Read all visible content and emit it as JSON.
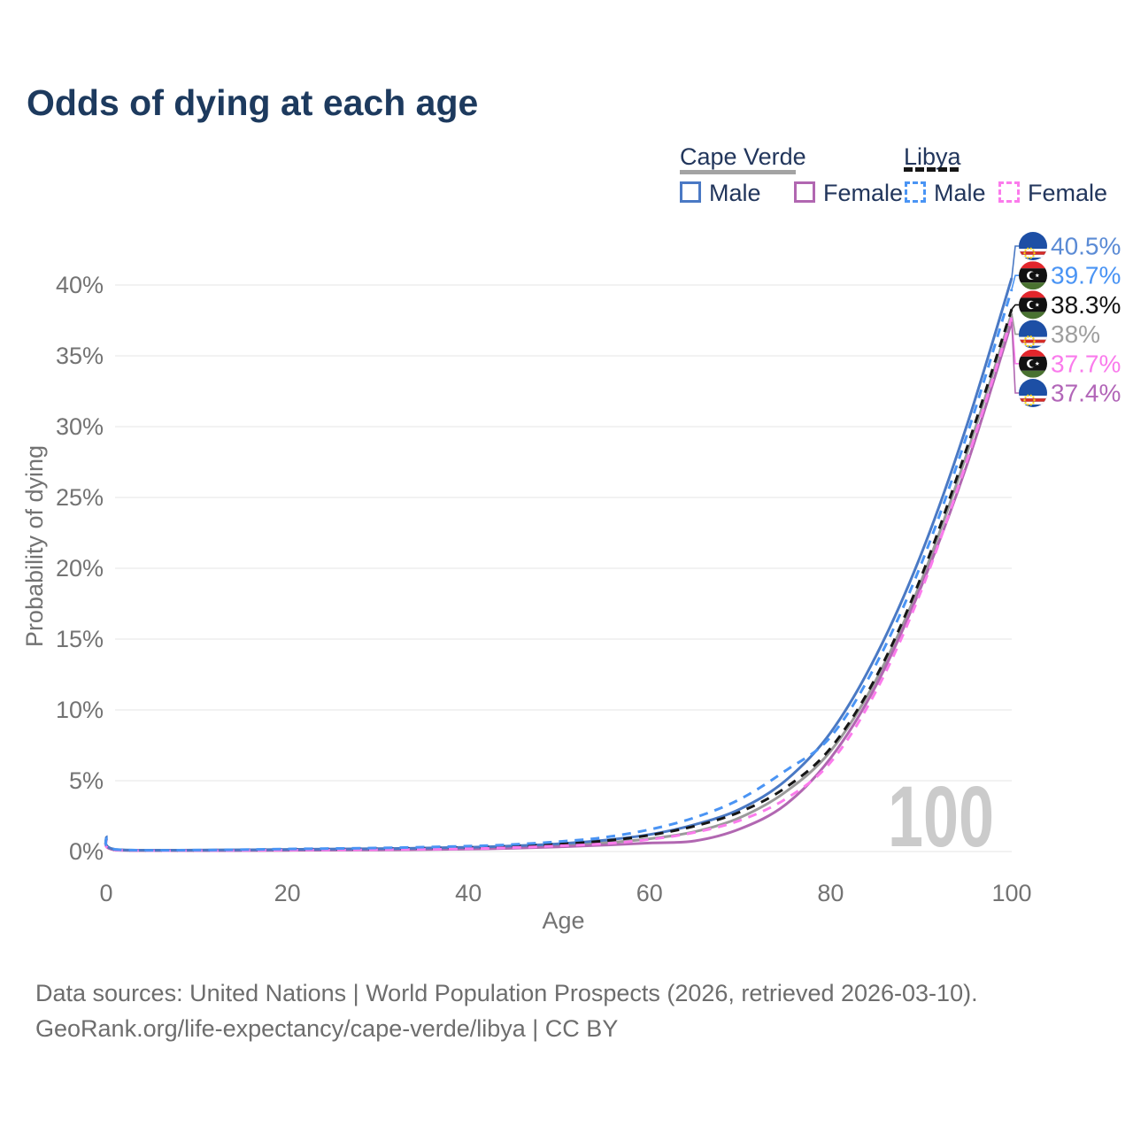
{
  "page": {
    "title": "Odds of dying at each age"
  },
  "legend": {
    "groups": [
      {
        "label": "Cape Verde",
        "line_style": "solid",
        "underline_color": "#a3a3a3",
        "items": [
          {
            "label": "Male",
            "color": "#4a79c4"
          },
          {
            "label": "Female",
            "color": "#b167b1"
          }
        ]
      },
      {
        "label": "Libya",
        "line_style": "dashed",
        "underline_color": "#161616",
        "items": [
          {
            "label": "Male",
            "color": "#4a94f4"
          },
          {
            "label": "Female",
            "color": "#fb7bec"
          }
        ]
      }
    ]
  },
  "watermark": "100",
  "footer": {
    "line1": "Data sources: United Nations | World Population Prospects (2026, retrieved 2026-03-10).",
    "line2": "GeoRank.org/life-expectancy/cape-verde/libya | CC BY"
  },
  "chart_data": {
    "type": "line",
    "title": "Odds of dying at each age",
    "xlabel": "Age",
    "ylabel": "Probability of dying",
    "xlim": [
      0,
      100
    ],
    "ylim": [
      0,
      42
    ],
    "x_ticks": [
      0,
      20,
      40,
      60,
      80,
      100
    ],
    "y_ticks": [
      0,
      5,
      10,
      15,
      20,
      25,
      30,
      35,
      40
    ],
    "y_tick_suffix": "%",
    "grid": "horizontal",
    "legend_position": "top-right",
    "x": [
      0,
      1,
      10,
      20,
      30,
      40,
      45,
      50,
      55,
      60,
      65,
      70,
      75,
      80,
      85,
      90,
      95,
      100
    ],
    "series": [
      {
        "id": "cv-male",
        "name": "Cape Verde Male",
        "dash": false,
        "color": "#4a79c4",
        "label_color": "#5b8bd5",
        "end_label": "40.5%",
        "end_value": 40.5,
        "flag": "cape-verde",
        "values": [
          1.1,
          0.15,
          0.1,
          0.15,
          0.2,
          0.3,
          0.4,
          0.55,
          0.8,
          1.2,
          1.9,
          3.0,
          5.0,
          8.4,
          13.8,
          21.0,
          30.0,
          40.5
        ]
      },
      {
        "id": "libya-male",
        "name": "Libya Male",
        "dash": true,
        "color": "#4a94f4",
        "label_color": "#4a94f4",
        "end_label": "39.7%",
        "end_value": 39.7,
        "flag": "libya",
        "values": [
          1.0,
          0.15,
          0.1,
          0.18,
          0.25,
          0.38,
          0.5,
          0.7,
          1.0,
          1.55,
          2.4,
          3.7,
          5.7,
          8.1,
          13.2,
          20.3,
          29.3,
          39.7
        ]
      },
      {
        "id": "libya-total",
        "name": "Libya",
        "dash": true,
        "color": "#161616",
        "label_color": "#161616",
        "end_label": "38.3%",
        "end_value": 38.3,
        "flag": "libya",
        "values": [
          0.9,
          0.12,
          0.08,
          0.13,
          0.18,
          0.28,
          0.38,
          0.52,
          0.75,
          1.15,
          1.8,
          2.8,
          4.5,
          7.3,
          12.3,
          19.4,
          28.4,
          38.3
        ]
      },
      {
        "id": "cv-total",
        "name": "Cape Verde",
        "dash": false,
        "color": "#9a9a9a",
        "label_color": "#9e9e9e",
        "end_label": "38%",
        "end_value": 38.0,
        "flag": "cape-verde",
        "values": [
          1.0,
          0.12,
          0.08,
          0.11,
          0.15,
          0.24,
          0.32,
          0.45,
          0.62,
          0.9,
          1.4,
          2.4,
          4.2,
          7.1,
          12.1,
          19.1,
          28.0,
          38.0
        ]
      },
      {
        "id": "libya-female",
        "name": "Libya Female",
        "dash": true,
        "color": "#fb7bec",
        "label_color": "#fa7bec",
        "end_label": "37.7%",
        "end_value": 37.7,
        "flag": "libya",
        "values": [
          0.85,
          0.1,
          0.07,
          0.1,
          0.13,
          0.2,
          0.28,
          0.4,
          0.55,
          0.85,
          1.35,
          2.2,
          3.7,
          6.3,
          11.3,
          18.4,
          27.5,
          37.7
        ]
      },
      {
        "id": "cv-female",
        "name": "Cape Verde Female",
        "dash": false,
        "color": "#b167b1",
        "label_color": "#b266b8",
        "end_label": "37.4%",
        "end_value": 37.4,
        "flag": "cape-verde",
        "values": [
          0.9,
          0.1,
          0.06,
          0.08,
          0.11,
          0.17,
          0.23,
          0.33,
          0.45,
          0.6,
          0.75,
          1.6,
          3.3,
          6.6,
          11.7,
          18.7,
          27.2,
          37.4
        ]
      }
    ],
    "draw_order": [
      "cv-total",
      "cv-female",
      "cv-male",
      "libya-total",
      "libya-female",
      "libya-male"
    ]
  }
}
